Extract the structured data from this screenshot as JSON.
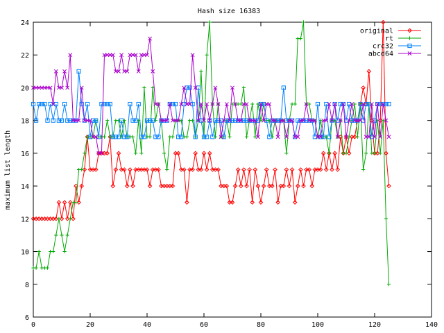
{
  "chart_data": {
    "type": "line",
    "title": "Hash size 16383",
    "xlabel": "",
    "ylabel": "maximum list length",
    "xlim": [
      0,
      140
    ],
    "ylim": [
      6,
      24
    ],
    "xticks": [
      0,
      20,
      40,
      60,
      80,
      100,
      120,
      140
    ],
    "yticks": [
      6,
      8,
      10,
      12,
      14,
      16,
      18,
      20,
      22,
      24
    ],
    "grid": false,
    "legend_position": "top-right",
    "series": [
      {
        "name": "original",
        "color": "#ff0000",
        "marker": "diamond",
        "values": [
          12,
          12,
          12,
          12,
          12,
          12,
          12,
          12,
          12,
          13,
          12,
          13,
          12,
          13,
          12,
          14,
          13,
          14,
          15,
          17,
          15,
          15,
          15,
          16,
          16,
          16,
          16,
          17,
          14,
          15,
          16,
          15,
          15,
          14,
          15,
          14,
          15,
          15,
          15,
          15,
          15,
          14,
          15,
          15,
          15,
          14,
          14,
          14,
          14,
          14,
          16,
          16,
          15,
          15,
          13,
          15,
          15,
          16,
          15,
          15,
          16,
          15,
          16,
          15,
          15,
          15,
          14,
          14,
          14,
          13,
          13,
          14,
          15,
          14,
          15,
          14,
          15,
          13,
          15,
          14,
          13,
          14,
          15,
          14,
          14,
          15,
          13,
          14,
          14,
          15,
          14,
          15,
          13,
          14,
          15,
          14,
          15,
          15,
          14,
          15,
          15,
          15,
          16,
          15,
          16,
          15,
          16,
          15,
          17,
          16,
          17,
          16,
          17,
          17,
          18,
          19,
          20,
          19,
          21,
          18,
          16,
          16,
          18,
          24,
          16,
          14
        ]
      },
      {
        "name": "rt",
        "color": "#00aa00",
        "marker": "plus",
        "values": [
          9,
          9,
          10,
          9,
          9,
          9,
          10,
          10,
          11,
          12,
          11,
          10,
          11,
          12,
          13,
          13,
          15,
          15,
          16,
          17,
          17,
          17,
          18,
          17,
          17,
          17,
          18,
          17,
          17,
          18,
          18,
          17,
          18,
          17,
          17,
          17,
          16,
          18,
          16,
          20,
          17,
          17,
          20,
          18,
          19,
          18,
          16,
          15,
          17,
          17,
          18,
          18,
          18,
          17,
          17,
          18,
          18,
          17,
          18,
          21,
          17,
          22,
          24,
          19,
          17,
          19,
          17,
          17,
          18,
          17,
          19,
          19,
          19,
          19,
          20,
          17,
          18,
          19,
          17,
          19,
          18,
          19,
          18,
          18,
          17,
          18,
          18,
          18,
          18,
          16,
          18,
          19,
          19,
          23,
          23,
          24,
          19,
          19,
          18,
          18,
          17,
          18,
          17,
          17,
          16,
          18,
          18,
          17,
          18,
          16,
          16,
          17,
          18,
          19,
          17,
          19,
          15,
          16,
          19,
          16,
          16,
          18,
          16,
          18,
          12,
          8
        ]
      },
      {
        "name": "crc32",
        "color": "#0080ff",
        "marker": "square",
        "values": [
          19,
          18,
          19,
          19,
          19,
          18,
          19,
          18,
          19,
          18,
          18,
          19,
          18,
          18,
          18,
          18,
          21,
          19,
          18,
          19,
          17,
          18,
          18,
          17,
          19,
          19,
          19,
          19,
          17,
          17,
          17,
          18,
          17,
          17,
          19,
          18,
          18,
          19,
          17,
          17,
          18,
          18,
          18,
          17,
          17,
          18,
          18,
          18,
          19,
          19,
          19,
          17,
          17,
          19,
          20,
          20,
          19,
          17,
          20,
          18,
          17,
          17,
          18,
          17,
          18,
          18,
          18,
          17,
          18,
          18,
          18,
          18,
          18,
          18,
          18,
          18,
          18,
          18,
          18,
          18,
          19,
          19,
          18,
          17,
          18,
          18,
          18,
          18,
          20,
          18,
          18,
          18,
          17,
          18,
          18,
          18,
          18,
          18,
          18,
          17,
          19,
          17,
          17,
          19,
          17,
          18,
          19,
          18,
          19,
          19,
          18,
          19,
          18,
          18,
          18,
          19,
          18,
          19,
          19,
          17,
          18,
          19,
          19,
          19,
          19,
          19
        ]
      },
      {
        "name": "abcd64",
        "color": "#aa00cc",
        "marker": "cross",
        "values": [
          20,
          20,
          20,
          20,
          20,
          20,
          20,
          19,
          21,
          20,
          20,
          21,
          20,
          22,
          18,
          18,
          18,
          20,
          18,
          18,
          18,
          17,
          17,
          16,
          16,
          22,
          22,
          22,
          22,
          21,
          21,
          22,
          21,
          21,
          22,
          22,
          22,
          21,
          22,
          22,
          22,
          23,
          21,
          19,
          19,
          18,
          18,
          18,
          19,
          18,
          18,
          18,
          19,
          20,
          19,
          19,
          22,
          20,
          18,
          19,
          18,
          19,
          18,
          19,
          20,
          19,
          17,
          18,
          19,
          18,
          20,
          19,
          18,
          18,
          19,
          19,
          18,
          18,
          18,
          17,
          19,
          18,
          19,
          19,
          18,
          18,
          17,
          18,
          18,
          17,
          18,
          18,
          17,
          17,
          18,
          18,
          19,
          18,
          18,
          18,
          17,
          17,
          18,
          18,
          19,
          18,
          19,
          17,
          18,
          19,
          17,
          18,
          19,
          18,
          18,
          18,
          19,
          17,
          17,
          19,
          17,
          19,
          17,
          19,
          18,
          17
        ]
      }
    ]
  }
}
